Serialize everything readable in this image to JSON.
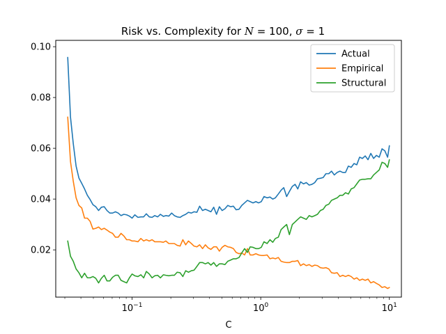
{
  "chart_data": {
    "type": "line",
    "title": "Risk vs. Complexity for N = 100, σ = 1",
    "title_parts": {
      "prefix": "Risk vs. Complexity for ",
      "n_symbol": "N",
      "n_value": " = 100, ",
      "sigma_symbol": "σ",
      "sigma_value": " = 1"
    },
    "xlabel": "C",
    "ylabel": "",
    "xscale": "log",
    "xlim": [
      0.0255,
      12.4
    ],
    "ylim": [
      0.0014,
      0.1025
    ],
    "x_ticks": [
      {
        "value": 0.1,
        "base": "10",
        "exp": "−1"
      },
      {
        "value": 1,
        "base": "10",
        "exp": "0"
      },
      {
        "value": 10,
        "base": "10",
        "exp": "1"
      }
    ],
    "y_ticks": [
      {
        "value": 0.02,
        "label": "0.02"
      },
      {
        "value": 0.04,
        "label": "0.04"
      },
      {
        "value": 0.06,
        "label": "0.06"
      },
      {
        "value": 0.08,
        "label": "0.08"
      },
      {
        "value": 0.1,
        "label": "0.10"
      }
    ],
    "grid": false,
    "legend_position": "top-right",
    "x": [
      0.0316,
      0.0332,
      0.0349,
      0.0367,
      0.0386,
      0.0406,
      0.0427,
      0.0449,
      0.0472,
      0.0496,
      0.0522,
      0.0549,
      0.0577,
      0.0607,
      0.0638,
      0.0671,
      0.0705,
      0.0742,
      0.078,
      0.082,
      0.0862,
      0.0907,
      0.0953,
      0.1,
      0.105,
      0.111,
      0.117,
      0.123,
      0.129,
      0.136,
      0.143,
      0.15,
      0.158,
      0.166,
      0.175,
      0.183,
      0.193,
      0.203,
      0.213,
      0.224,
      0.236,
      0.248,
      0.261,
      0.274,
      0.289,
      0.303,
      0.319,
      0.335,
      0.353,
      0.371,
      0.39,
      0.41,
      0.431,
      0.453,
      0.477,
      0.501,
      0.527,
      0.554,
      0.583,
      0.613,
      0.644,
      0.678,
      0.712,
      0.749,
      0.788,
      0.828,
      0.871,
      0.916,
      0.963,
      1.01,
      1.06,
      1.12,
      1.18,
      1.24,
      1.3,
      1.37,
      1.44,
      1.51,
      1.59,
      1.67,
      1.76,
      1.85,
      1.94,
      2.04,
      2.15,
      2.26,
      2.38,
      2.5,
      2.63,
      2.76,
      2.91,
      3.06,
      3.21,
      3.38,
      3.55,
      3.73,
      3.93,
      4.13,
      4.34,
      4.56,
      4.8,
      5.05,
      5.31,
      5.58,
      5.87,
      6.17,
      6.49,
      6.82,
      7.17,
      7.54,
      7.93,
      8.34,
      8.77,
      9.22,
      9.69,
      10.0
    ],
    "series": [
      {
        "name": "Actual",
        "color": "#1f77b4",
        "values": [
          0.0958,
          0.0723,
          0.0618,
          0.053,
          0.0483,
          0.0462,
          0.044,
          0.0415,
          0.0398,
          0.0378,
          0.037,
          0.0355,
          0.0368,
          0.037,
          0.0355,
          0.0345,
          0.0345,
          0.035,
          0.0345,
          0.0335,
          0.034,
          0.0338,
          0.0333,
          0.0325,
          0.0338,
          0.0328,
          0.033,
          0.033,
          0.0342,
          0.033,
          0.0328,
          0.0335,
          0.033,
          0.034,
          0.0332,
          0.0335,
          0.0333,
          0.0345,
          0.0335,
          0.033,
          0.0328,
          0.0335,
          0.034,
          0.0348,
          0.0345,
          0.035,
          0.0348,
          0.0372,
          0.0355,
          0.036,
          0.0355,
          0.035,
          0.0368,
          0.034,
          0.037,
          0.0355,
          0.0362,
          0.0375,
          0.037,
          0.0372,
          0.0358,
          0.036,
          0.0375,
          0.0385,
          0.0395,
          0.039,
          0.0385,
          0.039,
          0.0385,
          0.039,
          0.041,
          0.0405,
          0.0408,
          0.04,
          0.0405,
          0.042,
          0.0435,
          0.0445,
          0.041,
          0.043,
          0.045,
          0.0458,
          0.044,
          0.0468,
          0.046,
          0.0465,
          0.0455,
          0.0458,
          0.0465,
          0.048,
          0.0482,
          0.0485,
          0.05,
          0.05,
          0.051,
          0.0495,
          0.0505,
          0.051,
          0.0505,
          0.0505,
          0.053,
          0.0525,
          0.054,
          0.0535,
          0.0565,
          0.056,
          0.057,
          0.0555,
          0.058,
          0.056,
          0.0572,
          0.0565,
          0.0598,
          0.059,
          0.0565,
          0.061
        ]
      },
      {
        "name": "Empirical",
        "color": "#ff7f0e",
        "values": [
          0.0723,
          0.0548,
          0.047,
          0.0405,
          0.0375,
          0.0365,
          0.0325,
          0.0325,
          0.0312,
          0.0282,
          0.0285,
          0.029,
          0.028,
          0.0285,
          0.0278,
          0.027,
          0.0265,
          0.025,
          0.025,
          0.0265,
          0.0255,
          0.024,
          0.024,
          0.0235,
          0.0235,
          0.0232,
          0.0245,
          0.0235,
          0.024,
          0.0235,
          0.024,
          0.0232,
          0.0232,
          0.0232,
          0.023,
          0.0235,
          0.0225,
          0.0225,
          0.0225,
          0.0218,
          0.0215,
          0.024,
          0.022,
          0.0235,
          0.0225,
          0.0215,
          0.0212,
          0.022,
          0.0205,
          0.022,
          0.0208,
          0.0202,
          0.0212,
          0.0212,
          0.0195,
          0.021,
          0.0218,
          0.0212,
          0.021,
          0.0205,
          0.019,
          0.0185,
          0.0188,
          0.018,
          0.0205,
          0.018,
          0.018,
          0.0185,
          0.018,
          0.0178,
          0.0178,
          0.018,
          0.0165,
          0.0168,
          0.0165,
          0.017,
          0.0155,
          0.0152,
          0.015,
          0.015,
          0.0155,
          0.0155,
          0.0158,
          0.0138,
          0.0145,
          0.0138,
          0.0142,
          0.0135,
          0.014,
          0.0138,
          0.013,
          0.0128,
          0.013,
          0.0125,
          0.011,
          0.0108,
          0.011,
          0.0095,
          0.01,
          0.0095,
          0.01,
          0.0095,
          0.0085,
          0.009,
          0.008,
          0.0085,
          0.008,
          0.0085,
          0.007,
          0.0075,
          0.0068,
          0.0062,
          0.0052,
          0.0055,
          0.0048,
          0.0052
        ]
      },
      {
        "name": "Structural",
        "color": "#2ca02c",
        "values": [
          0.0235,
          0.0175,
          0.0155,
          0.0125,
          0.011,
          0.009,
          0.0108,
          0.009,
          0.009,
          0.0095,
          0.0088,
          0.007,
          0.0088,
          0.01,
          0.0078,
          0.0078,
          0.0092,
          0.01,
          0.01,
          0.008,
          0.0075,
          0.007,
          0.009,
          0.0105,
          0.0098,
          0.0095,
          0.0102,
          0.009,
          0.0115,
          0.0105,
          0.009,
          0.0098,
          0.01,
          0.009,
          0.0102,
          0.01,
          0.0098,
          0.01,
          0.01,
          0.0112,
          0.011,
          0.0095,
          0.0118,
          0.0112,
          0.0118,
          0.012,
          0.0135,
          0.015,
          0.015,
          0.0145,
          0.015,
          0.014,
          0.015,
          0.0135,
          0.0145,
          0.0145,
          0.0142,
          0.0155,
          0.016,
          0.0165,
          0.0165,
          0.017,
          0.0188,
          0.0205,
          0.019,
          0.0212,
          0.021,
          0.0205,
          0.0205,
          0.021,
          0.0232,
          0.0225,
          0.024,
          0.023,
          0.0245,
          0.025,
          0.028,
          0.029,
          0.03,
          0.026,
          0.03,
          0.031,
          0.032,
          0.033,
          0.0325,
          0.032,
          0.0335,
          0.033,
          0.0335,
          0.034,
          0.0355,
          0.036,
          0.0375,
          0.038,
          0.0395,
          0.04,
          0.0405,
          0.0415,
          0.0415,
          0.0425,
          0.042,
          0.044,
          0.0445,
          0.046,
          0.0475,
          0.0478,
          0.0478,
          0.048,
          0.048,
          0.0495,
          0.0505,
          0.0515,
          0.0545,
          0.054,
          0.0525,
          0.0555
        ]
      }
    ]
  }
}
